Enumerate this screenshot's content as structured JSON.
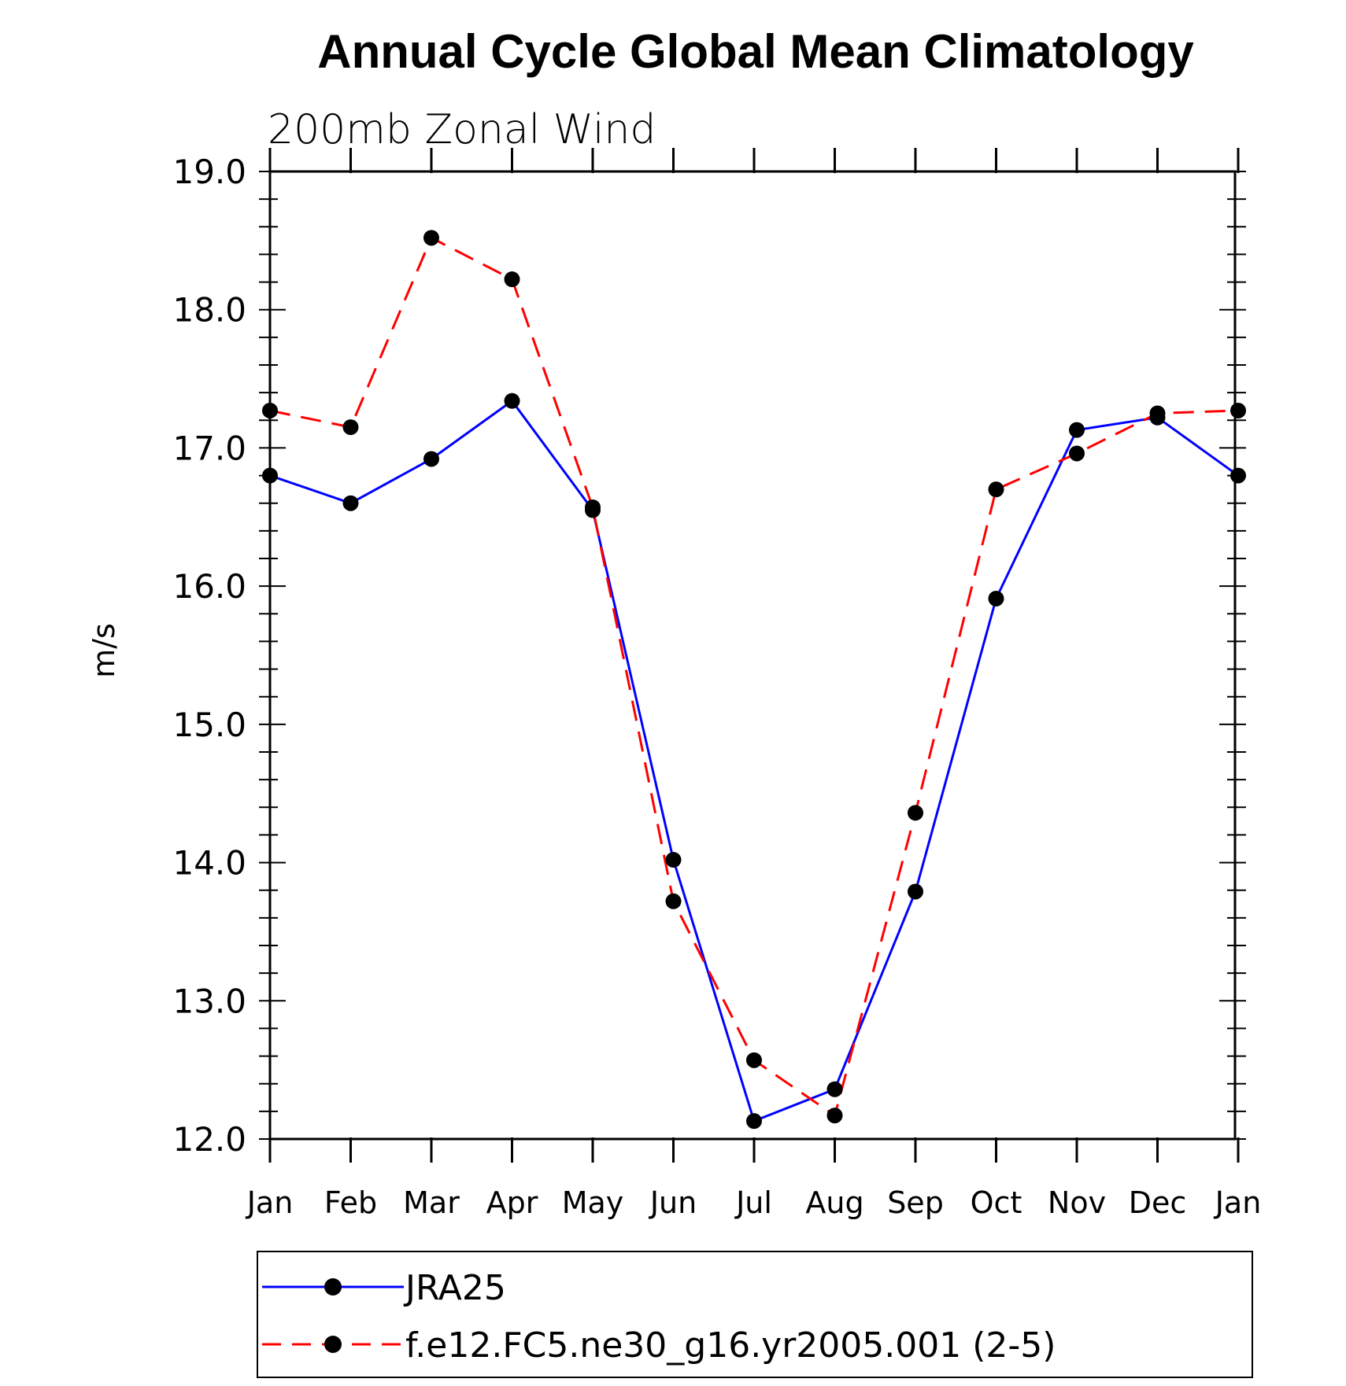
{
  "chart_data": {
    "type": "line",
    "title": "Annual Cycle Global Mean Climatology",
    "subtitle": "200mb  Zonal  Wind",
    "xlabel": "",
    "ylabel": "m/s",
    "categories": [
      "Jan",
      "Feb",
      "Mar",
      "Apr",
      "May",
      "Jun",
      "Jul",
      "Aug",
      "Sep",
      "Oct",
      "Nov",
      "Dec",
      "Jan"
    ],
    "ylim": [
      12.0,
      19.0
    ],
    "yticks": [
      "12.0",
      "13.0",
      "14.0",
      "15.0",
      "16.0",
      "17.0",
      "18.0",
      "19.0"
    ],
    "grid": false,
    "legend_position": "bottom",
    "series": [
      {
        "name": "JRA25",
        "style": "solid",
        "color": "#0000ff",
        "values": [
          16.8,
          16.6,
          16.92,
          17.34,
          16.55,
          14.02,
          12.13,
          12.36,
          13.79,
          15.91,
          17.13,
          17.22,
          16.8
        ]
      },
      {
        "name": "f.e12.FC5.ne30_g16.yr2005.001 (2-5)",
        "style": "dashed",
        "color": "#ff0000",
        "values": [
          17.27,
          17.15,
          18.52,
          18.22,
          16.57,
          13.72,
          12.57,
          12.17,
          14.36,
          16.7,
          16.96,
          17.25,
          17.27
        ]
      }
    ]
  },
  "colors": {
    "marker": "#000000",
    "axis": "#000000"
  }
}
